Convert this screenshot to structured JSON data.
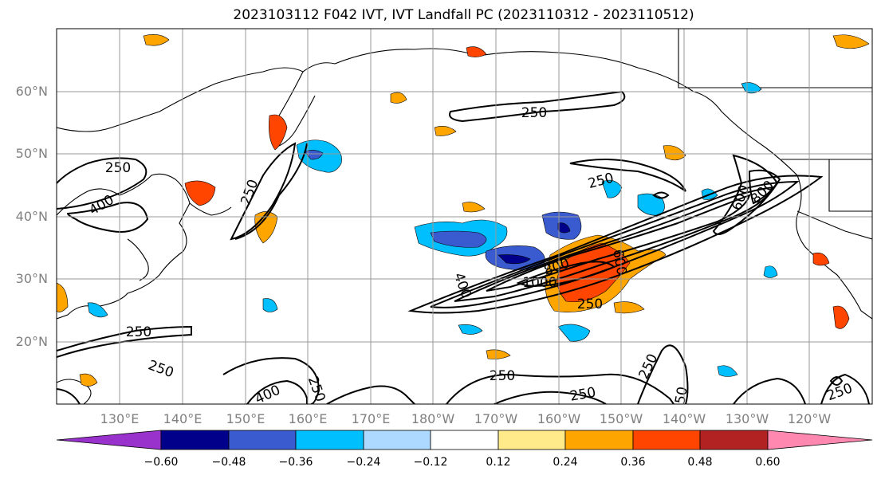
{
  "title": "2023103112 F042 IVT, IVT Landfall PC (2023110312 - 2023110512)",
  "lat_labels": [
    "60°N",
    "50°N",
    "40°N",
    "30°N",
    "20°N"
  ],
  "lon_labels": [
    "130°E",
    "140°E",
    "150°E",
    "160°E",
    "170°E",
    "180°W",
    "170°W",
    "160°W",
    "150°W",
    "140°W",
    "130°W",
    "120°W"
  ],
  "colorbar": {
    "colors": [
      "#9932cc",
      "#00008b",
      "#3a5bd0",
      "#00bfff",
      "#add8ff",
      "#ffffff",
      "#ffeb8a",
      "#ffa500",
      "#ff4500",
      "#b22222",
      "#ff88b0"
    ],
    "ticks": [
      "−0.60",
      "−0.48",
      "−0.36",
      "−0.24",
      "−0.12",
      "0.12",
      "0.24",
      "0.36",
      "0.48",
      "0.60"
    ]
  },
  "contour_labels": [
    "250",
    "250",
    "400",
    "250",
    "250",
    "400",
    "800",
    "1000",
    "800",
    "600",
    "400",
    "250",
    "600",
    "250",
    "250",
    "250",
    "250",
    "250",
    "250",
    "250",
    "250",
    "400",
    "250",
    "250",
    "250",
    "50",
    "250"
  ]
}
